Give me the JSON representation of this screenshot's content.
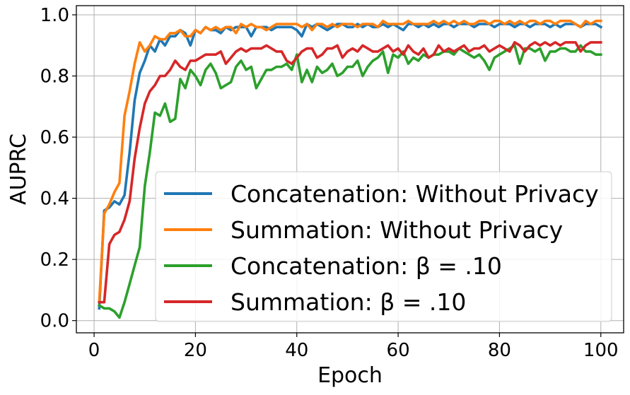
{
  "chart_data": {
    "type": "line",
    "title": "",
    "xlabel": "Epoch",
    "ylabel": "AUPRC",
    "xlim": [
      -3.5,
      104.5
    ],
    "ylim": [
      -0.04,
      1.03
    ],
    "xticks": [
      0,
      20,
      40,
      60,
      80,
      100
    ],
    "xtick_labels": [
      "0",
      "20",
      "40",
      "60",
      "80",
      "100"
    ],
    "yticks": [
      0.0,
      0.2,
      0.4,
      0.6,
      0.8,
      1.0
    ],
    "ytick_labels": [
      "0.0",
      "0.2",
      "0.4",
      "0.6",
      "0.8",
      "1.0"
    ],
    "grid": true,
    "legend_position": "lower-right",
    "series": [
      {
        "name": "Concatenation: Without Privacy",
        "color": "#1f77b4",
        "x": [
          1,
          2,
          3,
          4,
          5,
          6,
          7,
          8,
          9,
          10,
          11,
          12,
          13,
          14,
          15,
          16,
          17,
          18,
          19,
          20,
          21,
          22,
          23,
          24,
          25,
          26,
          27,
          28,
          29,
          30,
          31,
          32,
          33,
          34,
          35,
          36,
          37,
          38,
          39,
          40,
          41,
          42,
          43,
          44,
          45,
          46,
          47,
          48,
          49,
          50,
          51,
          52,
          53,
          54,
          55,
          56,
          57,
          58,
          59,
          60,
          61,
          62,
          63,
          64,
          65,
          66,
          67,
          68,
          69,
          70,
          71,
          72,
          73,
          74,
          75,
          76,
          77,
          78,
          79,
          80,
          81,
          82,
          83,
          84,
          85,
          86,
          87,
          88,
          89,
          90,
          91,
          92,
          93,
          94,
          95,
          96,
          97,
          98,
          99,
          100
        ],
        "values": [
          0.04,
          0.36,
          0.37,
          0.39,
          0.38,
          0.41,
          0.55,
          0.72,
          0.81,
          0.85,
          0.9,
          0.88,
          0.92,
          0.9,
          0.93,
          0.93,
          0.95,
          0.94,
          0.9,
          0.95,
          0.94,
          0.96,
          0.95,
          0.95,
          0.94,
          0.96,
          0.95,
          0.96,
          0.96,
          0.96,
          0.93,
          0.96,
          0.96,
          0.96,
          0.95,
          0.96,
          0.96,
          0.96,
          0.96,
          0.95,
          0.93,
          0.97,
          0.96,
          0.97,
          0.96,
          0.95,
          0.96,
          0.97,
          0.97,
          0.96,
          0.96,
          0.97,
          0.96,
          0.97,
          0.96,
          0.96,
          0.97,
          0.96,
          0.97,
          0.96,
          0.95,
          0.97,
          0.97,
          0.96,
          0.97,
          0.96,
          0.97,
          0.96,
          0.97,
          0.97,
          0.96,
          0.97,
          0.97,
          0.97,
          0.96,
          0.97,
          0.97,
          0.97,
          0.96,
          0.97,
          0.97,
          0.97,
          0.96,
          0.97,
          0.97,
          0.96,
          0.97,
          0.97,
          0.97,
          0.96,
          0.97,
          0.96,
          0.97,
          0.97,
          0.97,
          0.96,
          0.97,
          0.97,
          0.97,
          0.96
        ]
      },
      {
        "name": "Summation: Without Privacy",
        "color": "#ff7f0e",
        "x": [
          1,
          2,
          3,
          4,
          5,
          6,
          7,
          8,
          9,
          10,
          11,
          12,
          13,
          14,
          15,
          16,
          17,
          18,
          19,
          20,
          21,
          22,
          23,
          24,
          25,
          26,
          27,
          28,
          29,
          30,
          31,
          32,
          33,
          34,
          35,
          36,
          37,
          38,
          39,
          40,
          41,
          42,
          43,
          44,
          45,
          46,
          47,
          48,
          49,
          50,
          51,
          52,
          53,
          54,
          55,
          56,
          57,
          58,
          59,
          60,
          61,
          62,
          63,
          64,
          65,
          66,
          67,
          68,
          69,
          70,
          71,
          72,
          73,
          74,
          75,
          76,
          77,
          78,
          79,
          80,
          81,
          82,
          83,
          84,
          85,
          86,
          87,
          88,
          89,
          90,
          91,
          92,
          93,
          94,
          95,
          96,
          97,
          98,
          99,
          100
        ],
        "values": [
          0.06,
          0.35,
          0.38,
          0.42,
          0.45,
          0.67,
          0.75,
          0.84,
          0.91,
          0.88,
          0.9,
          0.93,
          0.92,
          0.92,
          0.94,
          0.94,
          0.95,
          0.93,
          0.93,
          0.95,
          0.94,
          0.96,
          0.95,
          0.96,
          0.95,
          0.96,
          0.96,
          0.94,
          0.97,
          0.96,
          0.97,
          0.96,
          0.96,
          0.95,
          0.96,
          0.97,
          0.97,
          0.97,
          0.97,
          0.97,
          0.96,
          0.97,
          0.95,
          0.97,
          0.97,
          0.96,
          0.97,
          0.96,
          0.97,
          0.97,
          0.97,
          0.96,
          0.97,
          0.97,
          0.97,
          0.96,
          0.98,
          0.97,
          0.97,
          0.97,
          0.97,
          0.98,
          0.97,
          0.97,
          0.97,
          0.97,
          0.98,
          0.97,
          0.98,
          0.97,
          0.98,
          0.97,
          0.98,
          0.97,
          0.97,
          0.98,
          0.98,
          0.97,
          0.98,
          0.98,
          0.97,
          0.98,
          0.97,
          0.98,
          0.97,
          0.98,
          0.98,
          0.97,
          0.98,
          0.98,
          0.97,
          0.98,
          0.98,
          0.98,
          0.97,
          0.96,
          0.98,
          0.97,
          0.98,
          0.98
        ]
      },
      {
        "name": "Concatenation: β = .10",
        "color": "#2ca02c",
        "x": [
          1,
          2,
          3,
          4,
          5,
          6,
          7,
          8,
          9,
          10,
          11,
          12,
          13,
          14,
          15,
          16,
          17,
          18,
          19,
          20,
          21,
          22,
          23,
          24,
          25,
          26,
          27,
          28,
          29,
          30,
          31,
          32,
          33,
          34,
          35,
          36,
          37,
          38,
          39,
          40,
          41,
          42,
          43,
          44,
          45,
          46,
          47,
          48,
          49,
          50,
          51,
          52,
          53,
          54,
          55,
          56,
          57,
          58,
          59,
          60,
          61,
          62,
          63,
          64,
          65,
          66,
          67,
          68,
          69,
          70,
          71,
          72,
          73,
          74,
          75,
          76,
          77,
          78,
          79,
          80,
          81,
          82,
          83,
          84,
          85,
          86,
          87,
          88,
          89,
          90,
          91,
          92,
          93,
          94,
          95,
          96,
          97,
          98,
          99,
          100
        ],
        "values": [
          0.05,
          0.04,
          0.04,
          0.03,
          0.01,
          0.06,
          0.12,
          0.18,
          0.24,
          0.44,
          0.55,
          0.68,
          0.67,
          0.71,
          0.65,
          0.66,
          0.79,
          0.76,
          0.82,
          0.8,
          0.77,
          0.82,
          0.84,
          0.81,
          0.76,
          0.77,
          0.78,
          0.83,
          0.85,
          0.82,
          0.83,
          0.76,
          0.79,
          0.82,
          0.82,
          0.83,
          0.83,
          0.84,
          0.82,
          0.87,
          0.78,
          0.82,
          0.78,
          0.83,
          0.81,
          0.82,
          0.84,
          0.8,
          0.81,
          0.83,
          0.83,
          0.85,
          0.8,
          0.83,
          0.85,
          0.86,
          0.88,
          0.81,
          0.87,
          0.86,
          0.88,
          0.84,
          0.86,
          0.85,
          0.87,
          0.86,
          0.87,
          0.87,
          0.88,
          0.88,
          0.87,
          0.89,
          0.88,
          0.87,
          0.86,
          0.87,
          0.85,
          0.82,
          0.86,
          0.87,
          0.88,
          0.89,
          0.9,
          0.84,
          0.89,
          0.89,
          0.88,
          0.89,
          0.85,
          0.88,
          0.88,
          0.89,
          0.89,
          0.88,
          0.88,
          0.9,
          0.88,
          0.88,
          0.87,
          0.87
        ]
      },
      {
        "name": "Summation: β = .10",
        "color": "#d62728",
        "x": [
          1,
          2,
          3,
          4,
          5,
          6,
          7,
          8,
          9,
          10,
          11,
          12,
          13,
          14,
          15,
          16,
          17,
          18,
          19,
          20,
          21,
          22,
          23,
          24,
          25,
          26,
          27,
          28,
          29,
          30,
          31,
          32,
          33,
          34,
          35,
          36,
          37,
          38,
          39,
          40,
          41,
          42,
          43,
          44,
          45,
          46,
          47,
          48,
          49,
          50,
          51,
          52,
          53,
          54,
          55,
          56,
          57,
          58,
          59,
          60,
          61,
          62,
          63,
          64,
          65,
          66,
          67,
          68,
          69,
          70,
          71,
          72,
          73,
          74,
          75,
          76,
          77,
          78,
          79,
          80,
          81,
          82,
          83,
          84,
          85,
          86,
          87,
          88,
          89,
          90,
          91,
          92,
          93,
          94,
          95,
          96,
          97,
          98,
          99,
          100
        ],
        "values": [
          0.06,
          0.06,
          0.25,
          0.28,
          0.29,
          0.33,
          0.39,
          0.53,
          0.63,
          0.71,
          0.75,
          0.77,
          0.8,
          0.8,
          0.82,
          0.85,
          0.83,
          0.82,
          0.85,
          0.85,
          0.86,
          0.87,
          0.87,
          0.87,
          0.88,
          0.84,
          0.86,
          0.88,
          0.89,
          0.88,
          0.89,
          0.89,
          0.89,
          0.9,
          0.89,
          0.88,
          0.88,
          0.85,
          0.84,
          0.86,
          0.88,
          0.89,
          0.89,
          0.86,
          0.87,
          0.89,
          0.89,
          0.9,
          0.86,
          0.88,
          0.89,
          0.88,
          0.9,
          0.89,
          0.88,
          0.88,
          0.89,
          0.9,
          0.88,
          0.89,
          0.87,
          0.9,
          0.88,
          0.87,
          0.89,
          0.86,
          0.87,
          0.9,
          0.88,
          0.89,
          0.88,
          0.89,
          0.9,
          0.88,
          0.89,
          0.89,
          0.9,
          0.88,
          0.89,
          0.9,
          0.89,
          0.88,
          0.91,
          0.9,
          0.88,
          0.9,
          0.91,
          0.9,
          0.91,
          0.9,
          0.91,
          0.9,
          0.91,
          0.91,
          0.91,
          0.88,
          0.9,
          0.91,
          0.91,
          0.91
        ]
      }
    ]
  }
}
